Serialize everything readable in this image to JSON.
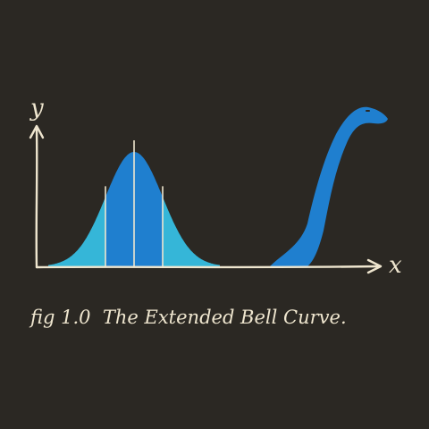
{
  "chart_data": {
    "type": "area",
    "title": "",
    "xlabel": "x",
    "ylabel": "y",
    "caption": "fig 1.0  The Extended Bell Curve.",
    "colors": {
      "background": "#2b2823",
      "ink": "#efe6cf",
      "outer_band": "#35b6d8",
      "inner_band": "#1f7fcf"
    },
    "bands": [
      {
        "name": "",
        "sigma_from": -3,
        "sigma_to": -1,
        "color": "#35b6d8"
      },
      {
        "name": "",
        "sigma_from": -1,
        "sigma_to": 1,
        "color": "#1f7fcf"
      },
      {
        "name": "",
        "sigma_from": 1,
        "sigma_to": 3,
        "color": "#35b6d8"
      }
    ],
    "sigma_lines": [
      -1,
      0,
      1
    ],
    "extra_shape": "loch-ness-monster-neck",
    "grid": false
  }
}
